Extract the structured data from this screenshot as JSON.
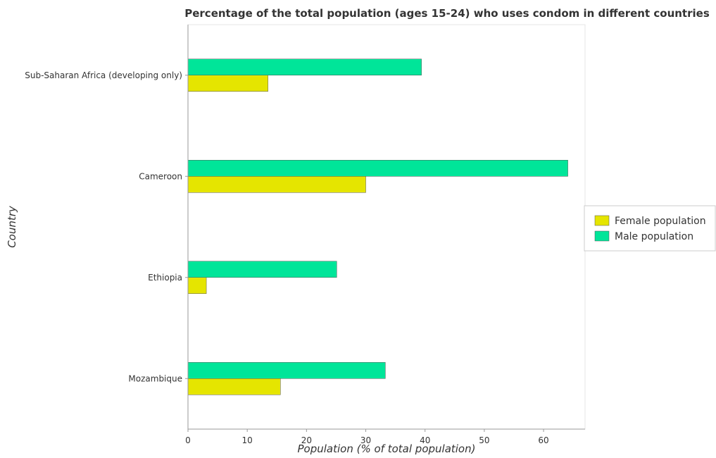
{
  "chart_data": {
    "type": "bar",
    "orientation": "horizontal",
    "title": "Percentage of the total population (ages 15-24) who uses condom in different countries",
    "xlabel": "Population (% of total population)",
    "ylabel": "Country",
    "categories": [
      "Sub-Saharan Africa (developing only)",
      "Cameroon",
      "Ethiopia",
      "Mozambique"
    ],
    "series": [
      {
        "name": "Female population",
        "color": "#e5e500",
        "values": [
          13.5,
          30.0,
          3.1,
          15.6
        ]
      },
      {
        "name": "Male population",
        "color": "#00e599",
        "values": [
          39.4,
          64.1,
          25.1,
          33.3
        ]
      }
    ],
    "xlim": [
      0,
      67
    ],
    "xticks": [
      0,
      10,
      20,
      30,
      40,
      50,
      60
    ],
    "grid": false,
    "legend_position": "right"
  }
}
